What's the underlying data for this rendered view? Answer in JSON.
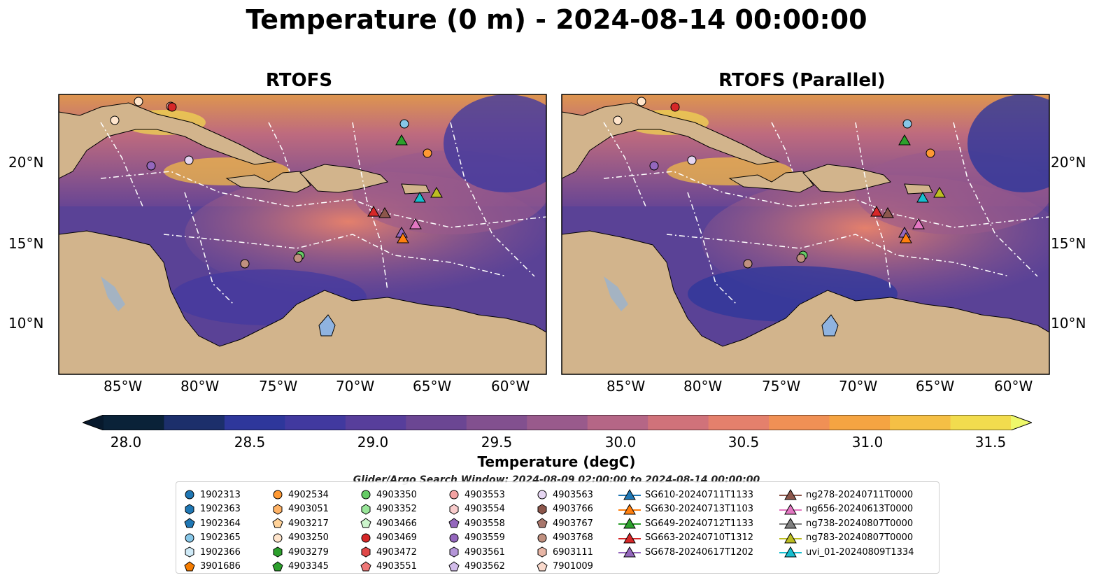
{
  "suptitle": "Temperature (0 m) - 2024-08-14 00:00:00",
  "panels": [
    {
      "title": "RTOFS"
    },
    {
      "title": "RTOFS (Parallel)"
    }
  ],
  "lat_labels": [
    "20°N",
    "15°N",
    "10°N"
  ],
  "lon_labels": [
    "85°W",
    "80°W",
    "75°W",
    "70°W",
    "65°W",
    "60°W"
  ],
  "colorbar": {
    "label": "Temperature (degC)",
    "ticks": [
      "28.0",
      "28.5",
      "29.0",
      "29.5",
      "30.0",
      "30.5",
      "31.0",
      "31.5"
    ],
    "colors": [
      "#0a2238",
      "#1c2f6b",
      "#2e379b",
      "#41399f",
      "#573e9b",
      "#6b4693",
      "#82508f",
      "#995a8c",
      "#b56686",
      "#d0727a",
      "#e4806c",
      "#f09055",
      "#f5a442",
      "#f5bf45",
      "#f2dc4e"
    ],
    "under_color": "#07192c",
    "over_color": "#eef86a"
  },
  "map_colors": {
    "land": "#d2b48c",
    "ocean_deep": "#3d3fa0",
    "warm": "#f39c4c"
  },
  "search_window": "Glider/Argo Search Window: 2024-08-09 02:00:00 to 2024-08-14 00:00:00",
  "legend": [
    {
      "label": "1902313",
      "marker": "circle",
      "color": "#1f77b4"
    },
    {
      "label": "1902363",
      "marker": "hexagon",
      "color": "#1f77b4"
    },
    {
      "label": "1902364",
      "marker": "pentagon",
      "color": "#1f77b4"
    },
    {
      "label": "1902365",
      "marker": "circle",
      "color": "#87c7e8"
    },
    {
      "label": "1902366",
      "marker": "hexagon",
      "color": "#cfeaf7"
    },
    {
      "label": "3901686",
      "marker": "pentagon",
      "color": "#f57c00"
    },
    {
      "label": "4902534",
      "marker": "circle",
      "color": "#ff9933"
    },
    {
      "label": "4903051",
      "marker": "hexagon",
      "color": "#ffb366"
    },
    {
      "label": "4903217",
      "marker": "pentagon",
      "color": "#ffd299"
    },
    {
      "label": "4903250",
      "marker": "circle",
      "color": "#ffe5cc"
    },
    {
      "label": "4903279",
      "marker": "hexagon",
      "color": "#2ca02c"
    },
    {
      "label": "4903345",
      "marker": "pentagon",
      "color": "#2ca02c"
    },
    {
      "label": "4903350",
      "marker": "circle",
      "color": "#66cc66"
    },
    {
      "label": "4903352",
      "marker": "hexagon",
      "color": "#99e699"
    },
    {
      "label": "4903466",
      "marker": "pentagon",
      "color": "#ccf5cc"
    },
    {
      "label": "4903469",
      "marker": "circle",
      "color": "#d62728"
    },
    {
      "label": "4903472",
      "marker": "hexagon",
      "color": "#e04848"
    },
    {
      "label": "4903551",
      "marker": "pentagon",
      "color": "#ee7777"
    },
    {
      "label": "4903553",
      "marker": "circle",
      "color": "#f4a3a3"
    },
    {
      "label": "4903554",
      "marker": "hexagon",
      "color": "#f9cccc"
    },
    {
      "label": "4903558",
      "marker": "pentagon",
      "color": "#9467bd"
    },
    {
      "label": "4903559",
      "marker": "circle",
      "color": "#9467bd"
    },
    {
      "label": "4903561",
      "marker": "hexagon",
      "color": "#b495d8"
    },
    {
      "label": "4903562",
      "marker": "pentagon",
      "color": "#d2bcea"
    },
    {
      "label": "4903563",
      "marker": "circle",
      "color": "#e6d6f2"
    },
    {
      "label": "4903766",
      "marker": "hexagon",
      "color": "#8c564b"
    },
    {
      "label": "4903767",
      "marker": "pentagon",
      "color": "#a8766b"
    },
    {
      "label": "4903768",
      "marker": "circle",
      "color": "#c0907f"
    },
    {
      "label": "6903111",
      "marker": "hexagon",
      "color": "#e8b6a6"
    },
    {
      "label": "7901009",
      "marker": "pentagon",
      "color": "#f9d9cc"
    },
    {
      "label": "SG610-20240711T1133",
      "marker": "triangle",
      "color": "#1f77b4"
    },
    {
      "label": "SG630-20240713T1103",
      "marker": "triangle",
      "color": "#ff7f0e"
    },
    {
      "label": "SG649-20240712T1133",
      "marker": "triangle",
      "color": "#2ca02c"
    },
    {
      "label": "SG663-20240710T1312",
      "marker": "triangle",
      "color": "#d62728"
    },
    {
      "label": "SG678-20240617T1202",
      "marker": "triangle",
      "color": "#9467bd"
    },
    {
      "label": "ng278-20240711T0000",
      "marker": "triangle",
      "color": "#8c564b"
    },
    {
      "label": "ng656-20240613T0000",
      "marker": "triangle",
      "color": "#e377c2"
    },
    {
      "label": "ng738-20240807T0000",
      "marker": "triangle",
      "color": "#7f7f7f"
    },
    {
      "label": "ng783-20240807T0000",
      "marker": "triangle",
      "color": "#bcbd22"
    },
    {
      "label": "uvi_01-20240809T1334",
      "marker": "triangle",
      "color": "#17becf"
    }
  ]
}
